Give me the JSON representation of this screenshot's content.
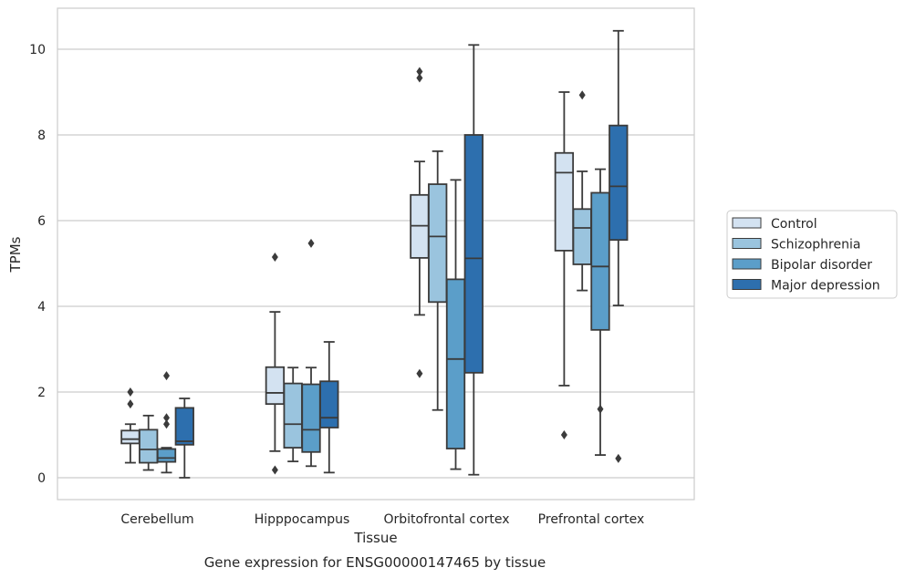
{
  "chart_data": {
    "type": "box",
    "xlabel": "Tissue",
    "ylabel": "TPMs",
    "caption": "Gene expression for ENSG00000147465 by tissue",
    "ylim": [
      -0.5,
      10.9
    ],
    "yticks": [
      0,
      2,
      4,
      6,
      8,
      10
    ],
    "grid": true,
    "legend_position": "right",
    "categories": [
      "Cerebellum",
      "Hipppocampus",
      "Orbitofrontal cortex",
      "Prefrontal cortex"
    ],
    "series": [
      {
        "name": "Control",
        "color": "#d3e2f1",
        "boxes": [
          {
            "whislo": 0.35,
            "q1": 0.8,
            "med": 0.9,
            "q3": 1.1,
            "whishi": 1.25,
            "fliers": [
              1.72,
              2.0
            ]
          },
          {
            "whislo": 0.62,
            "q1": 1.72,
            "med": 1.98,
            "q3": 2.58,
            "whishi": 3.87,
            "fliers": [
              0.18,
              5.15
            ]
          },
          {
            "whislo": 3.8,
            "q1": 5.13,
            "med": 5.88,
            "q3": 6.6,
            "whishi": 7.38,
            "fliers": [
              2.43,
              9.33,
              9.48
            ]
          },
          {
            "whislo": 2.15,
            "q1": 5.3,
            "med": 7.12,
            "q3": 7.58,
            "whishi": 9.0,
            "fliers": [
              1.0
            ]
          }
        ]
      },
      {
        "name": "Schizophrenia",
        "color": "#9ac4de",
        "boxes": [
          {
            "whislo": 0.18,
            "q1": 0.35,
            "med": 0.66,
            "q3": 1.12,
            "whishi": 1.45,
            "fliers": []
          },
          {
            "whislo": 0.38,
            "q1": 0.7,
            "med": 1.25,
            "q3": 2.2,
            "whishi": 2.57,
            "fliers": []
          },
          {
            "whislo": 1.58,
            "q1": 4.1,
            "med": 5.63,
            "q3": 6.85,
            "whishi": 7.62,
            "fliers": []
          },
          {
            "whislo": 4.37,
            "q1": 4.98,
            "med": 5.83,
            "q3": 6.27,
            "whishi": 7.15,
            "fliers": [
              8.93
            ]
          }
        ]
      },
      {
        "name": "Bipolar disorder",
        "color": "#5b9ec9",
        "boxes": [
          {
            "whislo": 0.12,
            "q1": 0.37,
            "med": 0.46,
            "q3": 0.67,
            "whishi": 0.7,
            "fliers": [
              1.25,
              1.4,
              2.38
            ]
          },
          {
            "whislo": 0.27,
            "q1": 0.6,
            "med": 1.12,
            "q3": 2.18,
            "whishi": 2.57,
            "fliers": [
              5.47
            ]
          },
          {
            "whislo": 0.2,
            "q1": 0.68,
            "med": 2.77,
            "q3": 4.63,
            "whishi": 6.95,
            "fliers": []
          },
          {
            "whislo": 0.53,
            "q1": 3.45,
            "med": 4.93,
            "q3": 6.65,
            "whishi": 7.2,
            "fliers": [
              1.6
            ]
          }
        ]
      },
      {
        "name": "Major depression",
        "color": "#2d6fae",
        "boxes": [
          {
            "whislo": 0.0,
            "q1": 0.77,
            "med": 0.85,
            "q3": 1.63,
            "whishi": 1.85,
            "fliers": []
          },
          {
            "whislo": 0.12,
            "q1": 1.17,
            "med": 1.4,
            "q3": 2.25,
            "whishi": 3.17,
            "fliers": []
          },
          {
            "whislo": 0.07,
            "q1": 2.45,
            "med": 5.12,
            "q3": 8.0,
            "whishi": 10.1,
            "fliers": []
          },
          {
            "whislo": 4.02,
            "q1": 5.55,
            "med": 6.8,
            "q3": 8.22,
            "whishi": 10.43,
            "fliers": [
              0.45
            ]
          }
        ]
      }
    ]
  }
}
